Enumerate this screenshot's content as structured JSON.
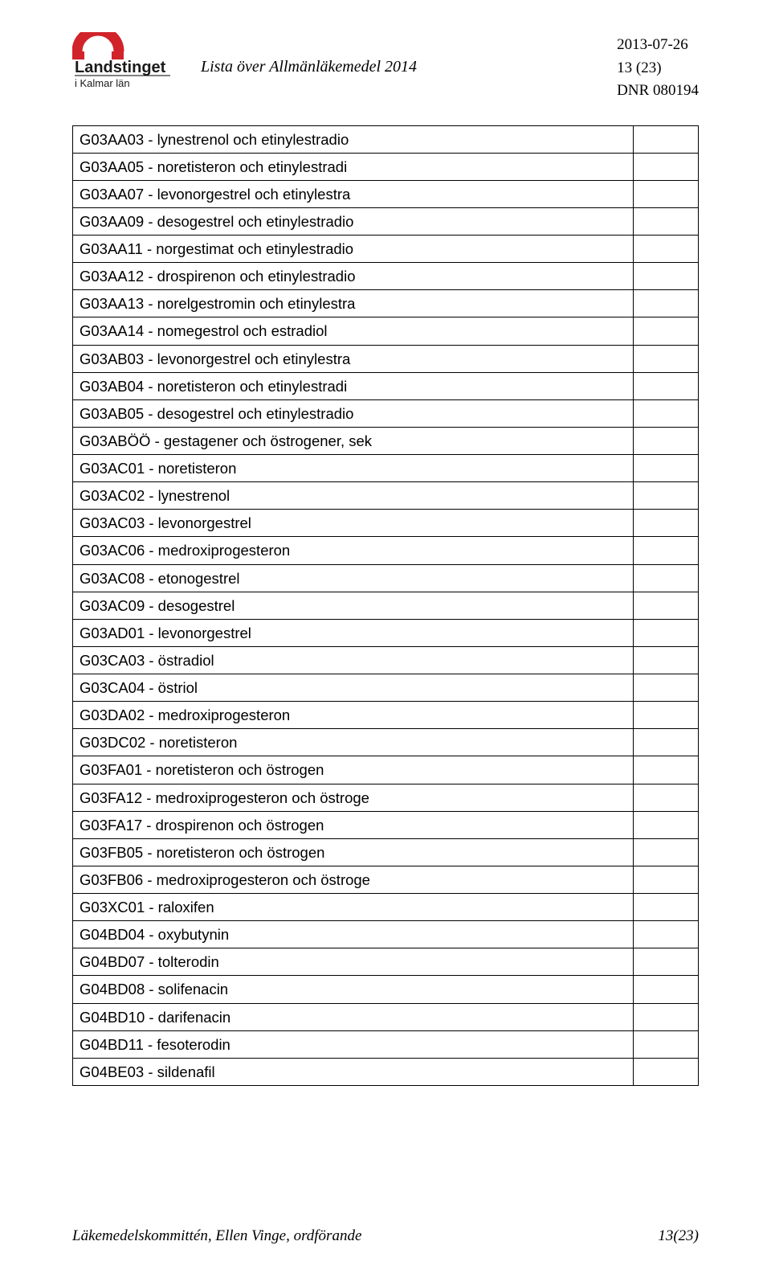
{
  "header": {
    "logo_top_text": "Landstinget",
    "logo_bottom_text": "i Kalmar län",
    "doc_title": "Lista över Allmänläkemedel 2014",
    "date": "2013-07-26",
    "page_label": "13 (23)",
    "dnr": "DNR 080194",
    "logo_colors": {
      "red": "#d1232a",
      "text": "#1a1a1a",
      "rule": "#000000"
    }
  },
  "rows": [
    "G03AA03 - lynestrenol och etinylestradio",
    "G03AA05 - noretisteron och etinylestradi",
    "G03AA07 - levonorgestrel och etinylestra",
    "G03AA09 - desogestrel och etinylestradio",
    "G03AA11 - norgestimat och etinylestradio",
    "G03AA12 - drospirenon och etinylestradio",
    "G03AA13 - norelgestromin och etinylestra",
    "G03AA14 - nomegestrol och estradiol",
    "G03AB03 - levonorgestrel och etinylestra",
    "G03AB04 - noretisteron och etinylestradi",
    "G03AB05 - desogestrel och etinylestradio",
    "G03ABÖÖ - gestagener och östrogener, sek",
    "G03AC01 - noretisteron",
    "G03AC02 - lynestrenol",
    "G03AC03 - levonorgestrel",
    "G03AC06 - medroxiprogesteron",
    "G03AC08 - etonogestrel",
    "G03AC09 - desogestrel",
    "G03AD01 - levonorgestrel",
    "G03CA03 - östradiol",
    "G03CA04 - östriol",
    "G03DA02 - medroxiprogesteron",
    "G03DC02 - noretisteron",
    "G03FA01 - noretisteron och östrogen",
    "G03FA12 - medroxiprogesteron och östroge",
    "G03FA17 - drospirenon och östrogen",
    "G03FB05 - noretisteron och östrogen",
    "G03FB06 - medroxiprogesteron och östroge",
    "G03XC01 - raloxifen",
    "G04BD04 - oxybutynin",
    "G04BD07 - tolterodin",
    "G04BD08 - solifenacin",
    "G04BD10 - darifenacin",
    "G04BD11 - fesoterodin",
    "G04BE03 - sildenafil"
  ],
  "footer": {
    "left": "Läkemedelskommittén, Ellen Vinge, ordförande",
    "right": "13(23)"
  }
}
